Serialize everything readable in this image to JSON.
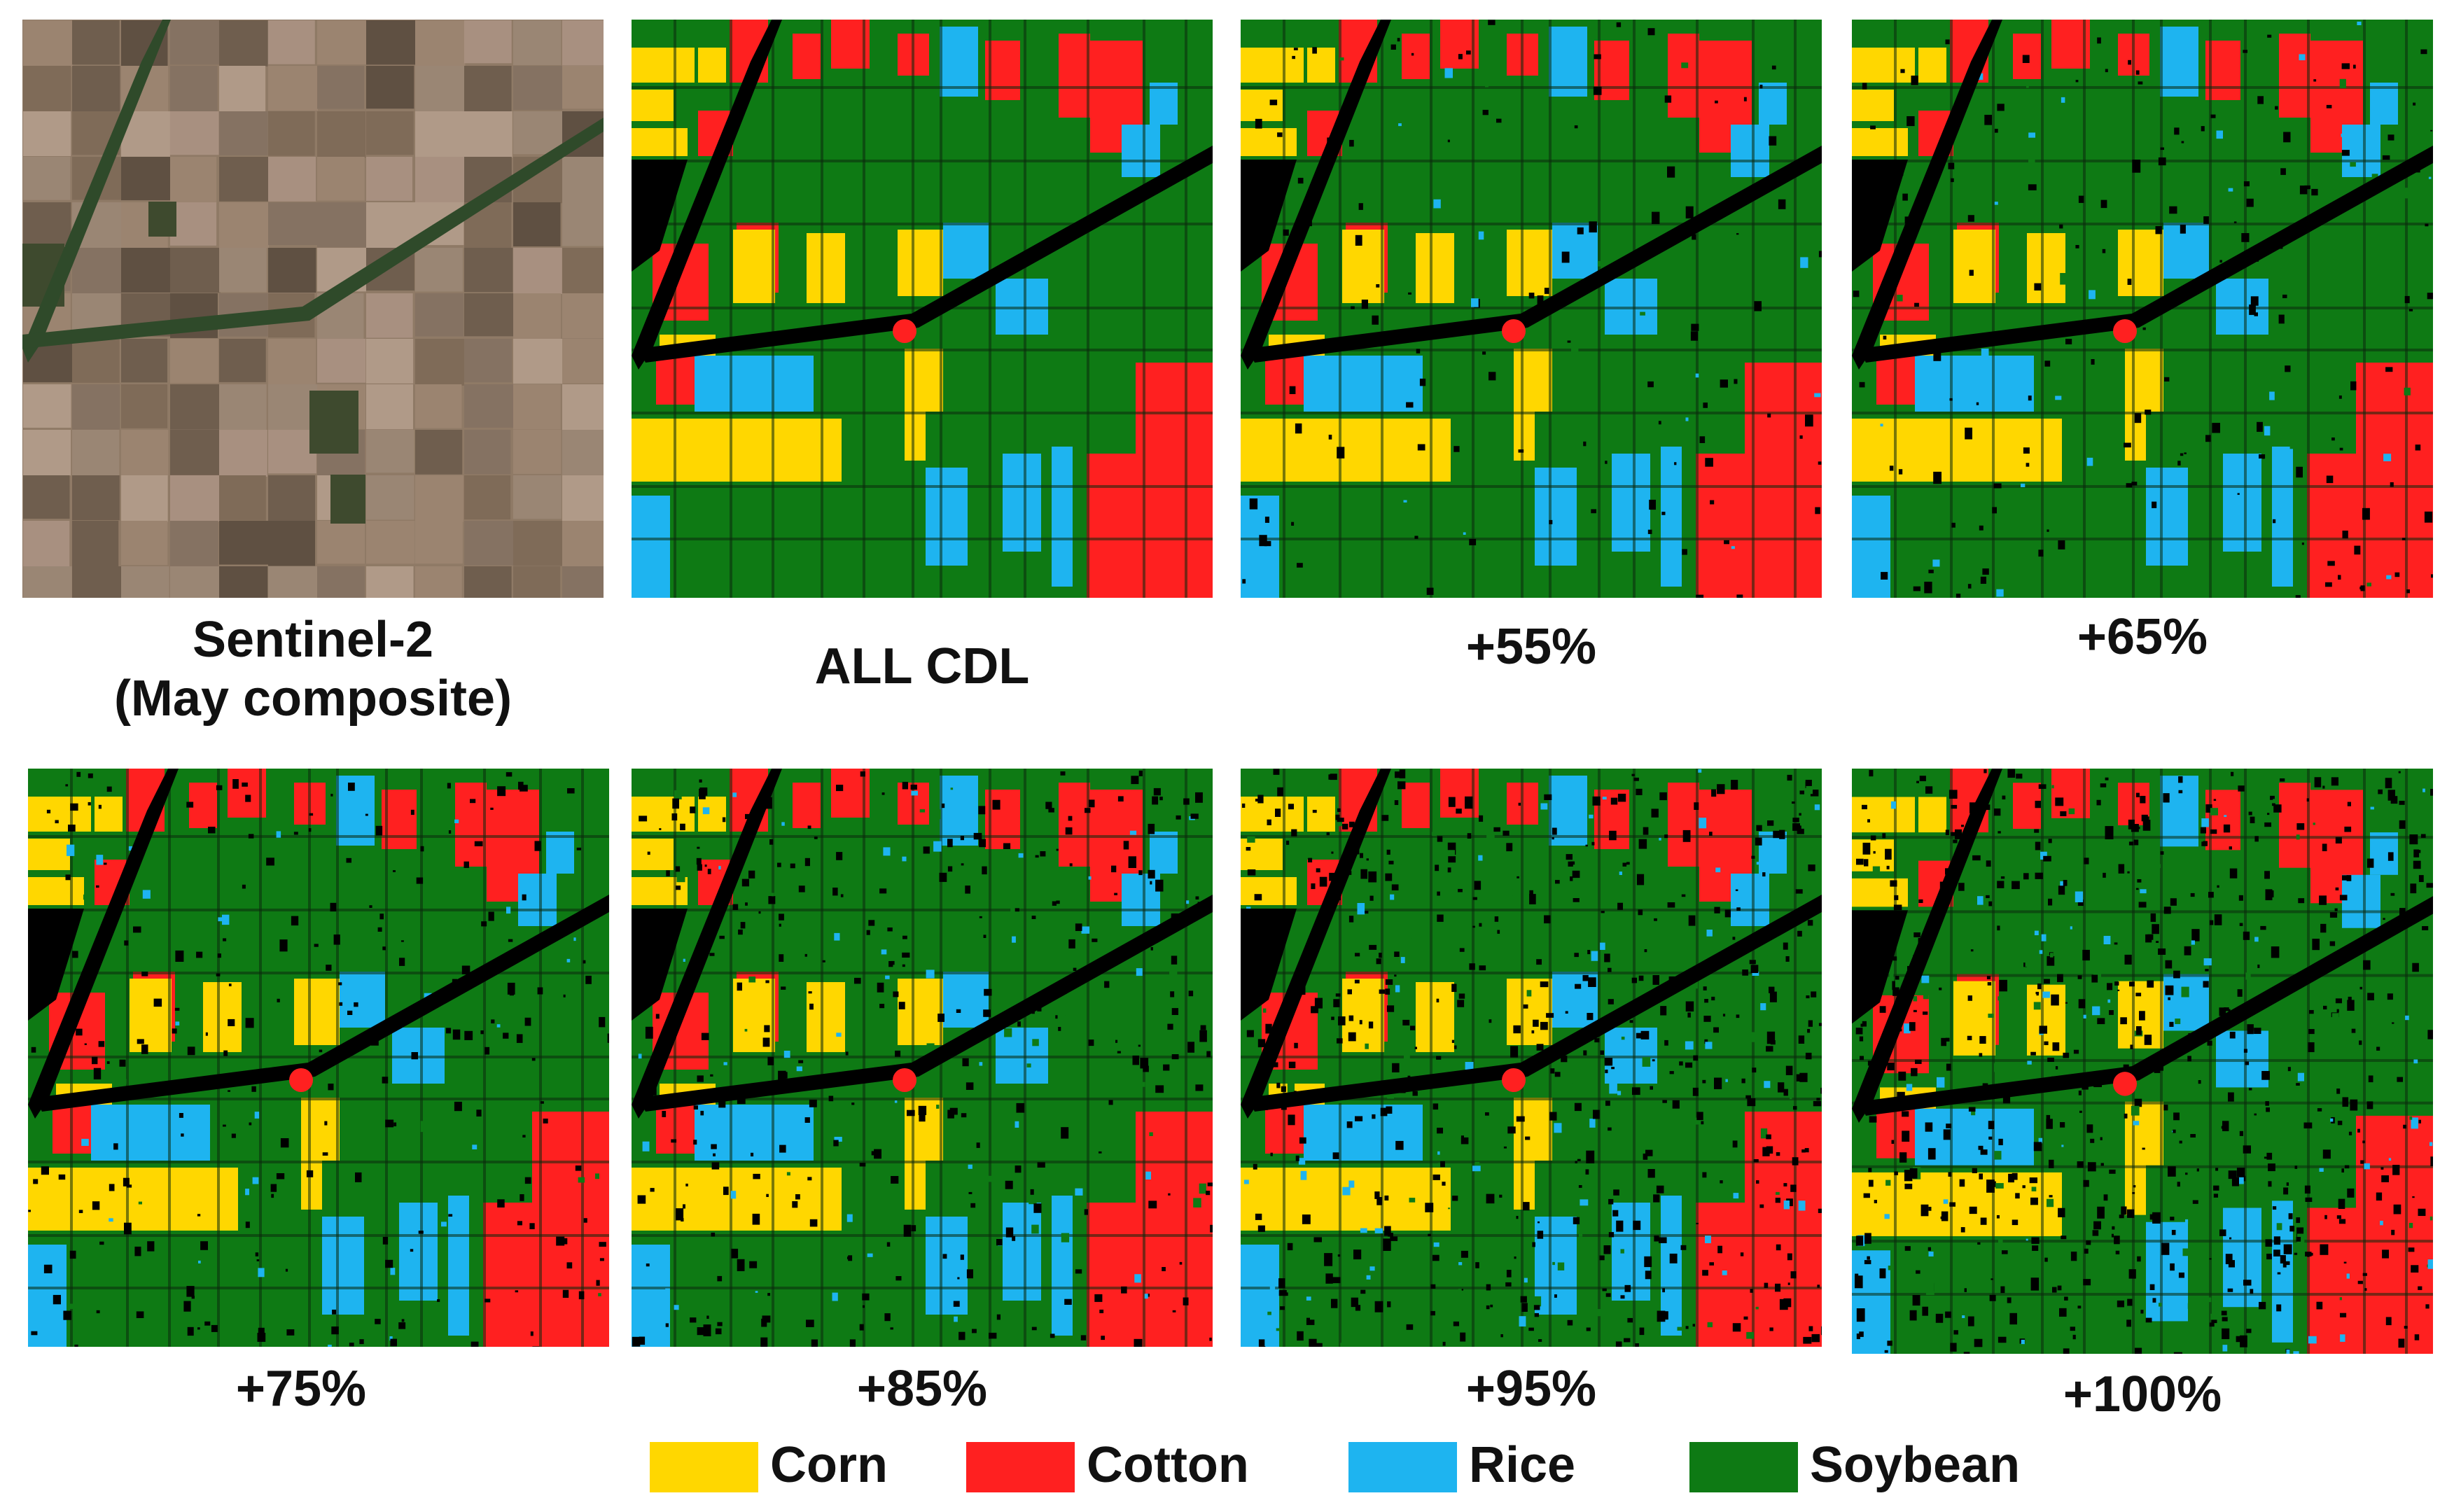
{
  "panels": [
    {
      "caption": "Sentinel-2\n(May composite)",
      "kind": "satellite"
    },
    {
      "caption": "ALL  CDL",
      "kind": "classified",
      "noise": 0.0
    },
    {
      "caption": "+55%",
      "kind": "classified",
      "noise": 0.05
    },
    {
      "caption": "+65%",
      "kind": "classified",
      "noise": 0.08
    },
    {
      "caption": "+75%",
      "kind": "classified",
      "noise": 0.11
    },
    {
      "caption": "+85%",
      "kind": "classified",
      "noise": 0.15
    },
    {
      "caption": "+95%",
      "kind": "classified",
      "noise": 0.24
    },
    {
      "caption": "+100%",
      "kind": "classified",
      "noise": 0.28
    }
  ],
  "legend": [
    {
      "label": "Corn",
      "color": "#FFD700"
    },
    {
      "label": "Cotton",
      "color": "#FF2020"
    },
    {
      "label": "Rice",
      "color": "#1EB4F0"
    },
    {
      "label": "Soybean",
      "color": "#0E7A14"
    }
  ],
  "colors": {
    "background": "#000000",
    "corn": "#FFD700",
    "cotton": "#FF2020",
    "rice": "#1EB4F0",
    "soybean": "#0E7A14"
  }
}
